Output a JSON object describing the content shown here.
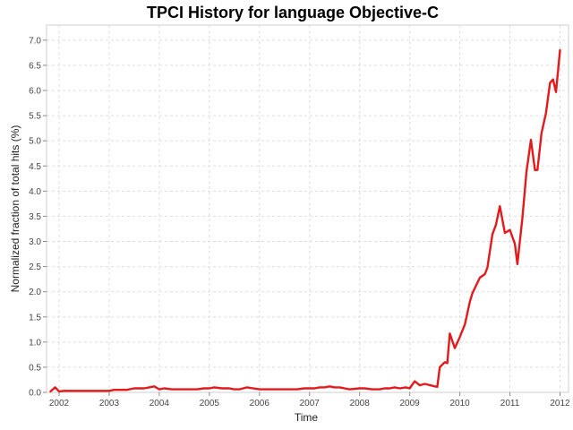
{
  "chart_data": {
    "type": "line",
    "title": "TPCI History for language Objective-C",
    "xlabel": "Time",
    "ylabel": "Normalized fraction of total hits (%)",
    "xlim": [
      2001.75,
      2012.17
    ],
    "ylim": [
      0.0,
      7.3
    ],
    "x_ticks": [
      "2002",
      "2003",
      "2004",
      "2005",
      "2006",
      "2007",
      "2008",
      "2009",
      "2010",
      "2011",
      "2012"
    ],
    "y_ticks": [
      "0.0",
      "0.5",
      "1.0",
      "1.5",
      "2.0",
      "2.5",
      "3.0",
      "3.5",
      "4.0",
      "4.5",
      "5.0",
      "5.5",
      "6.0",
      "6.5",
      "7.0"
    ],
    "grid": true,
    "series_color": "#e31a1c",
    "series": [
      {
        "x": [
          2001.83,
          2001.92,
          2002.0,
          2002.1,
          2002.3,
          2002.5,
          2002.75,
          2003.0,
          2003.1,
          2003.2,
          2003.35,
          2003.5,
          2003.6,
          2003.7,
          2003.8,
          2003.9,
          2004.0,
          2004.1,
          2004.25,
          2004.5,
          2004.75,
          2004.9,
          2005.0,
          2005.1,
          2005.25,
          2005.4,
          2005.5,
          2005.6,
          2005.75,
          2006.0,
          2006.25,
          2006.4,
          2006.5,
          2006.75,
          2006.9,
          2007.0,
          2007.1,
          2007.2,
          2007.3,
          2007.4,
          2007.5,
          2007.6,
          2007.7,
          2007.8,
          2008.0,
          2008.1,
          2008.25,
          2008.4,
          2008.5,
          2008.6,
          2008.7,
          2008.8,
          2008.92,
          2009.0,
          2009.1,
          2009.2,
          2009.3,
          2009.5,
          2009.55,
          2009.6,
          2009.7,
          2009.75,
          2009.8,
          2009.9,
          2010.0,
          2010.1,
          2010.2,
          2010.25,
          2010.4,
          2010.5,
          2010.55,
          2010.65,
          2010.72,
          2010.8,
          2010.9,
          2011.0,
          2011.1,
          2011.15,
          2011.25,
          2011.33,
          2011.42,
          2011.5,
          2011.55,
          2011.63,
          2011.72,
          2011.8,
          2011.86,
          2011.92,
          2012.0
        ],
        "y": [
          0.02,
          0.1,
          0.02,
          0.03,
          0.03,
          0.03,
          0.03,
          0.03,
          0.05,
          0.05,
          0.05,
          0.08,
          0.08,
          0.08,
          0.1,
          0.12,
          0.06,
          0.08,
          0.06,
          0.06,
          0.06,
          0.08,
          0.08,
          0.1,
          0.08,
          0.08,
          0.06,
          0.06,
          0.1,
          0.06,
          0.06,
          0.06,
          0.06,
          0.06,
          0.08,
          0.08,
          0.08,
          0.1,
          0.1,
          0.12,
          0.1,
          0.1,
          0.08,
          0.06,
          0.08,
          0.08,
          0.06,
          0.06,
          0.08,
          0.08,
          0.1,
          0.08,
          0.1,
          0.08,
          0.22,
          0.14,
          0.17,
          0.12,
          0.11,
          0.5,
          0.6,
          0.58,
          1.17,
          0.88,
          1.1,
          1.35,
          1.8,
          1.97,
          2.28,
          2.35,
          2.48,
          3.14,
          3.33,
          3.7,
          3.17,
          3.23,
          2.95,
          2.55,
          3.47,
          4.38,
          5.02,
          4.42,
          4.42,
          5.15,
          5.55,
          6.15,
          6.22,
          5.97,
          6.8
        ]
      }
    ]
  }
}
